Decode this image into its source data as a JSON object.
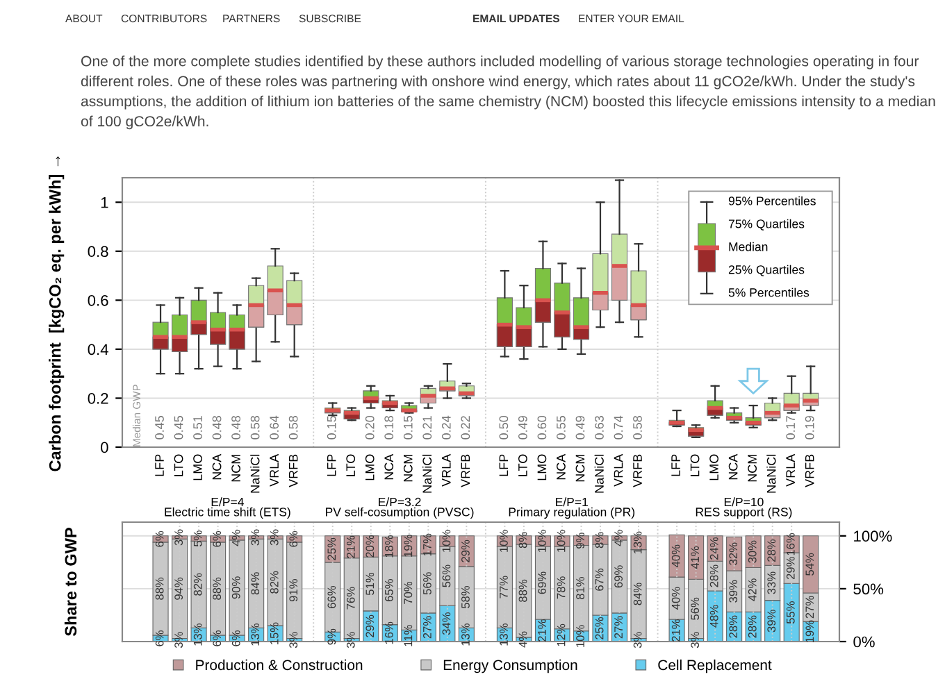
{
  "chart_data": [
    {
      "type": "box",
      "categories": [
        "LFP",
        "LTO",
        "LMO",
        "NCA",
        "NCM",
        "NaNiCl",
        "VRLA",
        "VRFB",
        null,
        "LFP",
        "LTO",
        "LMO",
        "NCA",
        "NCM",
        "NaNiCl",
        "VRLA",
        "VRFB",
        null,
        "LFP",
        "LTO",
        "LMO",
        "NCA",
        "NCM",
        "NaNiCl",
        "VRLA",
        "VRFB",
        null,
        "LFP",
        "LTO",
        "LMO",
        "NCA",
        "NCM",
        "NaNiCl",
        "VRLA",
        "VRFB"
      ],
      "boxes": [
        {
          "low": 0.3,
          "q1": 0.4,
          "median": 0.45,
          "q3": 0.51,
          "high": 0.58
        },
        {
          "low": 0.3,
          "q1": 0.39,
          "median": 0.45,
          "q3": 0.54,
          "high": 0.61
        },
        {
          "low": 0.32,
          "q1": 0.46,
          "median": 0.51,
          "q3": 0.6,
          "high": 0.65
        },
        {
          "low": 0.33,
          "q1": 0.42,
          "median": 0.48,
          "q3": 0.55,
          "high": 0.63
        },
        {
          "low": 0.32,
          "q1": 0.4,
          "median": 0.48,
          "q3": 0.54,
          "high": 0.58
        },
        {
          "low": 0.35,
          "q1": 0.49,
          "median": 0.58,
          "q3": 0.66,
          "high": 0.69
        },
        {
          "low": 0.43,
          "q1": 0.54,
          "median": 0.64,
          "q3": 0.74,
          "high": 0.81
        },
        {
          "low": 0.37,
          "q1": 0.5,
          "median": 0.58,
          "q3": 0.68,
          "high": 0.71
        },
        null,
        {
          "low": 0.13,
          "q1": 0.14,
          "median": 0.15,
          "q3": 0.16,
          "high": 0.18
        },
        {
          "low": 0.11,
          "q1": 0.115,
          "median": 0.14,
          "q3": 0.15,
          "high": 0.16
        },
        {
          "low": 0.16,
          "q1": 0.18,
          "median": 0.2,
          "q3": 0.23,
          "high": 0.25
        },
        {
          "low": 0.15,
          "q1": 0.16,
          "median": 0.18,
          "q3": 0.19,
          "high": 0.21
        },
        {
          "low": 0.14,
          "q1": 0.145,
          "median": 0.15,
          "q3": 0.17,
          "high": 0.18
        },
        {
          "low": 0.16,
          "q1": 0.18,
          "median": 0.21,
          "q3": 0.24,
          "high": 0.25
        },
        {
          "low": 0.2,
          "q1": 0.23,
          "median": 0.24,
          "q3": 0.27,
          "high": 0.34
        },
        {
          "low": 0.2,
          "q1": 0.21,
          "median": 0.22,
          "q3": 0.25,
          "high": 0.26
        },
        null,
        {
          "low": 0.37,
          "q1": 0.41,
          "median": 0.5,
          "q3": 0.61,
          "high": 0.72
        },
        {
          "low": 0.36,
          "q1": 0.41,
          "median": 0.49,
          "q3": 0.57,
          "high": 0.66
        },
        {
          "low": 0.41,
          "q1": 0.51,
          "median": 0.6,
          "q3": 0.73,
          "high": 0.84
        },
        {
          "low": 0.4,
          "q1": 0.45,
          "median": 0.55,
          "q3": 0.67,
          "high": 0.75
        },
        {
          "low": 0.38,
          "q1": 0.44,
          "median": 0.49,
          "q3": 0.61,
          "high": 0.73
        },
        {
          "low": 0.49,
          "q1": 0.56,
          "median": 0.63,
          "q3": 0.79,
          "high": 1.0
        },
        {
          "low": 0.51,
          "q1": 0.6,
          "median": 0.74,
          "q3": 0.87,
          "high": 1.09
        },
        {
          "low": 0.45,
          "q1": 0.52,
          "median": 0.58,
          "q3": 0.72,
          "high": 0.83
        },
        null,
        {
          "low": 0.085,
          "q1": 0.09,
          "median": 0.1,
          "q3": 0.11,
          "high": 0.15
        },
        {
          "low": 0.04,
          "q1": 0.045,
          "median": 0.07,
          "q3": 0.08,
          "high": 0.09
        },
        {
          "low": 0.12,
          "q1": 0.13,
          "median": 0.16,
          "q3": 0.19,
          "high": 0.25
        },
        {
          "low": 0.1,
          "q1": 0.11,
          "median": 0.12,
          "q3": 0.14,
          "high": 0.16
        },
        {
          "low": 0.08,
          "q1": 0.09,
          "median": 0.1,
          "q3": 0.12,
          "high": 0.17
        },
        {
          "low": 0.11,
          "q1": 0.12,
          "median": 0.14,
          "q3": 0.18,
          "high": 0.2
        },
        {
          "low": 0.14,
          "q1": 0.15,
          "median": 0.17,
          "q3": 0.22,
          "high": 0.29
        },
        {
          "low": 0.15,
          "q1": 0.17,
          "median": 0.19,
          "q3": 0.22,
          "high": 0.33
        }
      ],
      "value_labels": [
        "0.45",
        "0.45",
        "0.51",
        "0.48",
        "0.48",
        "0.58",
        "0.64",
        "0.58",
        null,
        "0.15",
        null,
        "0.20",
        "0.18",
        "0.15",
        "0.21",
        "0.24",
        "0.22",
        null,
        "0.50",
        "0.49",
        "0.60",
        "0.55",
        "0.49",
        "0.63",
        "0.74",
        "0.58",
        null,
        null,
        null,
        null,
        null,
        null,
        null,
        "0.17",
        "0.19"
      ],
      "colors": [
        "#7dc242",
        "#7dc242",
        "#7dc242",
        "#7dc242",
        "#7dc242",
        "#c6e3a2",
        "#c6e3a2",
        "#c6e3a2",
        null,
        "#7dc242",
        "#7dc242",
        "#7dc242",
        "#7dc242",
        "#7dc242",
        "#c6e3a2",
        "#c6e3a2",
        "#c6e3a2",
        null,
        "#7dc242",
        "#7dc242",
        "#7dc242",
        "#7dc242",
        "#7dc242",
        "#c6e3a2",
        "#c6e3a2",
        "#c6e3a2",
        null,
        "#7dc242",
        "#7dc242",
        "#7dc242",
        "#7dc242",
        "#7dc242",
        "#c6e3a2",
        "#c6e3a2",
        "#c6e3a2"
      ],
      "ylabel": "Carbon footprint  [kgCO₂ eq. per kWh] →",
      "ylim": [
        0,
        1.1
      ],
      "yticks": [
        0,
        0.2,
        0.4,
        0.6,
        0.8,
        1
      ],
      "grid": true,
      "annotations": [
        "ABOUT",
        "CONTRIBUTORS",
        "PARTNERS",
        "SUBSCRIBE",
        "EMAIL UPDATES",
        "ENTER YOUR EMAIL",
        "One of the more complete studies identified by these authors included modelling of various storage technologies operating in four different roles. One of these roles was partnering with onshore wind energy, which rates about 11 gCO2e/kWh. Under the study's assumptions, the addition of lithium ion batteries of the same chemistry (NCM) boosted this lifecycle emissions intensity to a median of 100 gCO2e/kWh.",
        "Median GWP",
        "95% Percentiles",
        "75% Quartiles",
        "Median",
        "25% Quartiles",
        "5% Percentiles",
        "E/P=4\nElectric time shift (ETS)",
        "E/P=3.2\nPV self-cosumption (PVSC)",
        "E/P=1\nPrimary regulation (PR)",
        "E/P=10\nRES support (RS)"
      ]
    },
    {
      "type": "bar",
      "stacked": true,
      "categories": [
        null,
        null,
        null,
        null,
        null,
        null,
        null,
        null,
        null,
        null,
        null,
        null,
        null,
        null,
        null,
        null,
        null,
        null,
        null,
        null,
        null,
        null,
        null,
        null,
        null,
        null,
        null,
        null,
        null,
        null,
        null,
        null,
        null,
        null,
        null
      ],
      "series": [
        {
          "name": "Cell Replacement",
          "color": "#66ccee",
          "values": [
            6,
            3,
            13,
            6,
            6,
            13,
            15,
            3,
            null,
            9,
            3,
            29,
            16,
            11,
            27,
            34,
            13,
            null,
            13,
            4,
            21,
            12,
            10,
            25,
            27,
            3,
            null,
            21,
            3,
            48,
            28,
            28,
            39,
            55,
            19
          ],
          "value_labels": [
            "6%",
            "3%",
            "13%",
            "6%",
            "6%",
            "13%",
            "15%",
            "3%",
            null,
            "9%",
            "3%",
            "29%",
            "16%",
            "11%",
            "27%",
            "34%",
            "13%",
            null,
            "13%",
            "4%",
            "21%",
            "12%",
            "10%",
            "25%",
            "27%",
            "3%",
            null,
            "21%",
            "3%",
            "48%",
            "28%",
            "28%",
            "39%",
            "55%",
            "19%"
          ]
        },
        {
          "name": "Energy Consumption",
          "color": "#c8c8c8",
          "values": [
            88,
            94,
            82,
            88,
            90,
            84,
            82,
            91,
            null,
            66,
            76,
            51,
            65,
            70,
            56,
            56,
            58,
            null,
            77,
            88,
            69,
            78,
            81,
            67,
            69,
            84,
            null,
            40,
            56,
            28,
            39,
            42,
            33,
            29,
            27
          ],
          "value_labels": [
            "88%",
            "94%",
            "82%",
            "88%",
            "90%",
            "84%",
            "82%",
            "91%",
            null,
            "66%",
            "76%",
            "51%",
            "65%",
            "70%",
            "56%",
            "56%",
            "58%",
            null,
            "77%",
            "88%",
            "69%",
            "78%",
            "81%",
            "67%",
            "69%",
            "84%",
            null,
            "40%",
            "56%",
            "28%",
            "39%",
            "42%",
            "33%",
            "29%",
            "27%"
          ]
        },
        {
          "name": "Production & Construction",
          "color": "#c09a9a",
          "values": [
            6,
            3,
            5,
            6,
            4,
            3,
            3,
            6,
            null,
            25,
            21,
            20,
            18,
            19,
            17,
            10,
            29,
            null,
            10,
            8,
            10,
            10,
            9,
            8,
            4,
            13,
            null,
            40,
            41,
            24,
            32,
            30,
            28,
            16,
            54
          ],
          "value_labels": [
            "6%",
            "3%",
            "5%",
            "6%",
            "4%",
            "3%",
            "3%",
            "6%",
            null,
            "25%",
            "21%",
            "20%",
            "18%",
            "19%",
            "17%",
            "10%",
            "29%",
            null,
            "10%",
            "8%",
            "10%",
            "10%",
            "9%",
            "8%",
            "4%",
            "13%",
            null,
            "40%",
            "41%",
            "24%",
            "32%",
            "30%",
            "28%",
            "16%",
            "54%"
          ]
        }
      ],
      "ylabel": "Share to GWP",
      "ylim": [
        0,
        113
      ],
      "yticks": [
        {
          "value": 0,
          "label": "0%"
        },
        {
          "value": 50,
          "label": "50%"
        },
        {
          "value": 100,
          "label": "100%"
        }
      ],
      "grid": true,
      "legend": "bottom"
    }
  ]
}
